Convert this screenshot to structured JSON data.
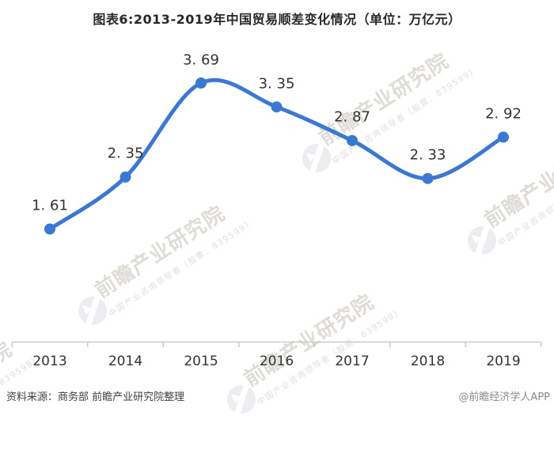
{
  "title": "图表6:2013-2019年中国贸易顺差变化情况（单位：万亿元）",
  "chart_data": {
    "type": "line",
    "categories": [
      "2013",
      "2014",
      "2015",
      "2016",
      "2017",
      "2018",
      "2019"
    ],
    "values": [
      1.61,
      2.35,
      3.69,
      3.35,
      2.87,
      2.33,
      2.92
    ],
    "point_labels": [
      "1. 61",
      "2. 35",
      "3. 69",
      "3. 35",
      "2. 87",
      "2. 33",
      "2. 92"
    ],
    "series_name": "中国贸易顺差",
    "title": "图表6:2013-2019年中国贸易顺差变化情况（单位：万亿元）",
    "xlabel": "",
    "ylabel": "",
    "unit": "万亿元",
    "ylim": [
      0,
      4
    ],
    "grid": false,
    "legend_position": "none",
    "smooth": true,
    "markers": true
  },
  "footer": {
    "source": "资料来源：商务部 前瞻产业研究院整理",
    "credit": "@前瞻经济学人APP"
  },
  "watermark": {
    "text": "前瞻产业研究院",
    "subtext": "中国产业咨询领导者（股票：839599）"
  },
  "colors": {
    "line": "#3A78D2",
    "marker": "#3A78D2",
    "axis": "#c9c9c9",
    "data_label": "#333333",
    "title": "#282828",
    "footer_source": "#3f3f3f",
    "footer_credit": "#8a8a8a"
  }
}
